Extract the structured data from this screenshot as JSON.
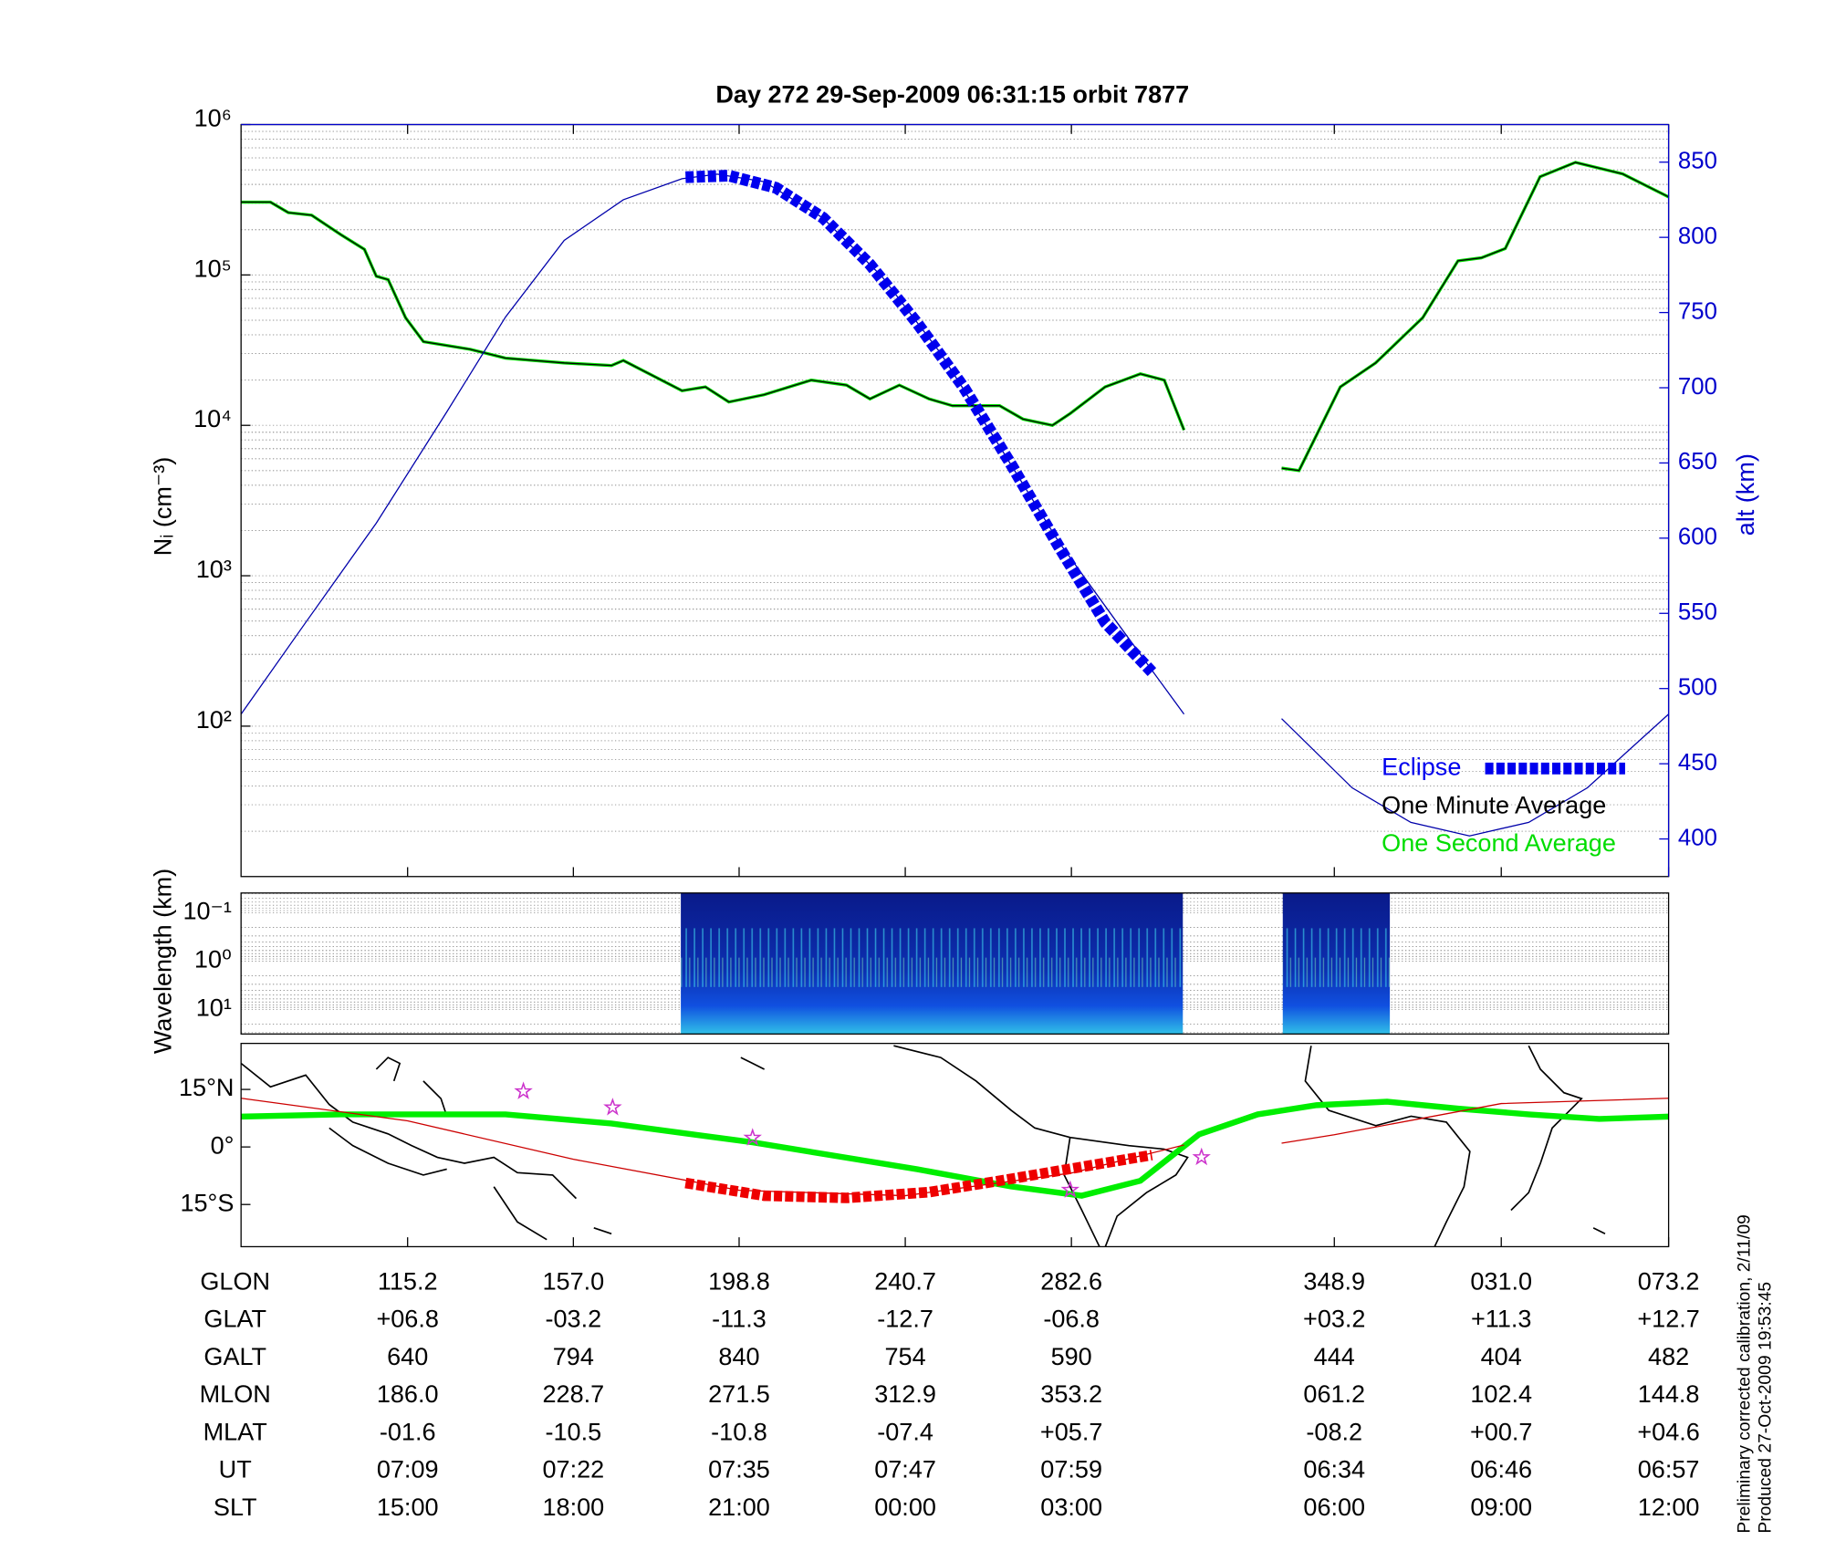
{
  "title": "Day 272  29-Sep-2009 06:31:15   orbit 7877",
  "chart_data": [
    {
      "type": "line",
      "ylabel": "Nᵢ (cm⁻³)",
      "y2label": "alt (km)",
      "log_y": true,
      "minor_grid": true,
      "xlim": [
        73.2,
        433.2
      ],
      "xticks": [
        115.2,
        157.0,
        198.8,
        240.7,
        282.6,
        348.9,
        391.0,
        433.2
      ],
      "ylim": [
        10,
        1000000
      ],
      "yticks": [
        {
          "value": 100,
          "label": "10²"
        },
        {
          "value": 1000,
          "label": "10³"
        },
        {
          "value": 10000,
          "label": "10⁴"
        },
        {
          "value": 100000,
          "label": "10⁵"
        },
        {
          "value": 1000000,
          "label": "10⁶"
        }
      ],
      "y2lim": [
        375,
        875
      ],
      "y2ticks": [
        400,
        450,
        500,
        550,
        600,
        650,
        700,
        750,
        800,
        850
      ],
      "y2color": "#0000cc",
      "legend": "lower right",
      "series": [
        {
          "name": "Eclipse",
          "color": "#0000ee",
          "axis": "y2",
          "marker": "square",
          "x": [
            185.3,
            196.2,
            208.1,
            220.0,
            231.8,
            243.7,
            255.5,
            267.4,
            279.3,
            291.1,
            302.9
          ],
          "values": [
            840,
            841,
            833,
            813,
            782,
            743,
            700,
            649,
            595,
            544,
            511
          ]
        },
        {
          "name": "One Minute Average",
          "color": "#000000",
          "x": [
            73.2,
            80.6,
            85.1,
            91.0,
            98.4,
            104.3,
            107.3,
            110.3,
            114.7,
            119.2,
            131.0,
            139.9,
            154.7,
            166.6,
            169.6,
            184.4,
            190.3,
            196.2,
            205.1,
            217.0,
            225.9,
            231.8,
            239.2,
            246.7,
            252.6,
            264.5,
            270.4,
            277.8,
            282.3,
            291.1,
            300.0,
            306.0,
            311.0,
            323.0,
            335.6,
            340.0,
            350.4,
            359.3,
            371.2,
            380.1,
            386.0,
            392.0,
            400.8,
            409.7,
            421.6,
            433.2
          ],
          "values": [
            305000,
            305000,
            260000,
            250000,
            185000,
            148000,
            98000,
            93000,
            52000,
            36000,
            32000,
            28000,
            26000,
            25000,
            27000,
            17000,
            18000,
            14300,
            16000,
            20000,
            18500,
            15000,
            18500,
            15000,
            13500,
            13500,
            11000,
            10000,
            12000,
            18000,
            22000,
            20000,
            9300,
            null,
            5200,
            5000,
            18000,
            26000,
            52000,
            124000,
            130000,
            150000,
            450000,
            560000,
            470000,
            330000
          ]
        },
        {
          "name": "One Second Average",
          "color": "#00dd00",
          "x": [
            73.2,
            80.6,
            85.1,
            91.0,
            98.4,
            104.3,
            107.3,
            110.3,
            114.7,
            119.2,
            131.0,
            139.9,
            154.7,
            166.6,
            169.6,
            184.4,
            190.3,
            196.2,
            205.1,
            217.0,
            225.9,
            231.8,
            239.2,
            246.7,
            252.6,
            264.5,
            270.4,
            277.8,
            282.3,
            291.1,
            300.0,
            306.0,
            311.0,
            323.0,
            335.6,
            340.0,
            350.4,
            359.3,
            371.2,
            380.1,
            386.0,
            392.0,
            400.8,
            409.7,
            421.6,
            433.2
          ],
          "values": [
            305000,
            305000,
            260000,
            250000,
            185000,
            148000,
            98000,
            93000,
            52000,
            36000,
            32000,
            28000,
            26000,
            25000,
            27000,
            17000,
            18000,
            14300,
            16000,
            20000,
            18500,
            15000,
            18500,
            15000,
            13500,
            13500,
            11000,
            10000,
            12000,
            18000,
            22000,
            20000,
            9300,
            null,
            5200,
            5000,
            18000,
            26000,
            52000,
            124000,
            130000,
            150000,
            450000,
            560000,
            470000,
            330000
          ]
        },
        {
          "color": "#0000aa",
          "axis": "y2",
          "x": [
            73.2,
            89.5,
            107.3,
            125.1,
            139.9,
            154.7,
            169.6,
            184.4,
            193.3,
            205.1,
            219.9,
            234.8,
            249.6,
            264.5,
            279.3,
            294.1,
            311.0,
            323.0,
            335.6,
            353.4,
            368.2,
            383.0,
            397.9,
            412.7,
            433.2
          ],
          "values": [
            483,
            544,
            610,
            684,
            747,
            798,
            825,
            839,
            842,
            837,
            813,
            774,
            723,
            661,
            598,
            544,
            483,
            null,
            480,
            434,
            411,
            402,
            411,
            434,
            483
          ]
        }
      ]
    },
    {
      "type": "spectrogram",
      "ylabel": "Wavelength (km)",
      "log_y": true,
      "y_inverted": true,
      "minor_grid": true,
      "xlim": [
        73.2,
        433.2
      ],
      "ylim": [
        0.039,
        32
      ],
      "yticks": [
        {
          "value": 0.1,
          "label": "10⁻¹"
        },
        {
          "value": 1,
          "label": "10⁰"
        },
        {
          "value": 10,
          "label": "10¹"
        }
      ],
      "x_ranges": [
        [
          184.1,
          310.7
        ],
        [
          335.9,
          362.9
        ]
      ]
    },
    {
      "type": "map",
      "xlim": [
        73.2,
        433.2
      ],
      "xticks": [
        115.2,
        157.0,
        198.8,
        240.7,
        282.6,
        348.9,
        391.0,
        433.2
      ],
      "ylim": [
        -26,
        27
      ],
      "yticks": [
        {
          "value": 15,
          "label": "15°N"
        },
        {
          "value": 0,
          "label": "0°"
        },
        {
          "value": -15,
          "label": "15°S"
        }
      ],
      "series": [
        {
          "color": "#00ee00",
          "width": 5,
          "x": [
            73.2,
            98.4,
            139.9,
            166.6,
            202.2,
            243.7,
            267.4,
            285.2,
            300.0,
            314.8,
            329.6,
            344.4,
            362.2,
            380.1,
            397.9,
            415.7,
            433.2
          ],
          "values": [
            7.9,
            8.5,
            8.5,
            6.1,
            1.2,
            -5.8,
            -10.3,
            -12.7,
            -8.8,
            3.3,
            8.5,
            10.9,
            11.8,
            10.0,
            8.5,
            7.3,
            7.9
          ]
        },
        {
          "color": "#cc0000",
          "width": 1,
          "x": [
            73.2,
            115.2,
            157.0,
            198.8,
            240.7,
            282.6,
            311.0,
            323.0,
            335.6,
            348.9,
            391.0,
            433.2
          ],
          "values": [
            12.7,
            6.8,
            -3.2,
            -11.3,
            -12.7,
            -6.8,
            0.5,
            null,
            1.0,
            3.2,
            11.3,
            12.7
          ]
        },
        {
          "color": "#ee0000",
          "width": 9,
          "marker": "square",
          "x": [
            185.3,
            205.1,
            225.9,
            246.7,
            264.5,
            285.2,
            302.9
          ],
          "values": [
            -9.4,
            -12.7,
            -13.3,
            -11.8,
            -8.8,
            -5.2,
            -2.1
          ]
        }
      ],
      "markers": {
        "color": "#cc33cc",
        "x": [
          144.4,
          166.9,
          202.2,
          282.3,
          315.4
        ],
        "values": [
          14.5,
          10.3,
          2.4,
          -11.2,
          -2.7
        ]
      }
    }
  ],
  "table": {
    "rows": [
      [
        "GLON",
        "115.2",
        "157.0",
        "198.8",
        "240.7",
        "282.6",
        "348.9",
        "031.0",
        "073.2"
      ],
      [
        "GLAT",
        "+06.8",
        "-03.2",
        "-11.3",
        "-12.7",
        "-06.8",
        "+03.2",
        "+11.3",
        "+12.7"
      ],
      [
        "GALT",
        "640",
        "794",
        "840",
        "754",
        "590",
        "444",
        "404",
        "482"
      ],
      [
        "MLON",
        "186.0",
        "228.7",
        "271.5",
        "312.9",
        "353.2",
        "061.2",
        "102.4",
        "144.8"
      ],
      [
        "MLAT",
        "-01.6",
        "-10.5",
        "-10.8",
        "-07.4",
        "+05.7",
        "-08.2",
        "+00.7",
        "+04.6"
      ],
      [
        "UT",
        "07:09",
        "07:22",
        "07:35",
        "07:47",
        "07:59",
        "06:34",
        "06:46",
        "06:57"
      ],
      [
        "SLT",
        "15:00",
        "18:00",
        "21:00",
        "00:00",
        "03:00",
        "06:00",
        "09:00",
        "12:00"
      ]
    ]
  },
  "notes": [
    "Preliminary corrected calibration, 2/11/09",
    "Produced 27-Oct-2009 19:53:45"
  ]
}
